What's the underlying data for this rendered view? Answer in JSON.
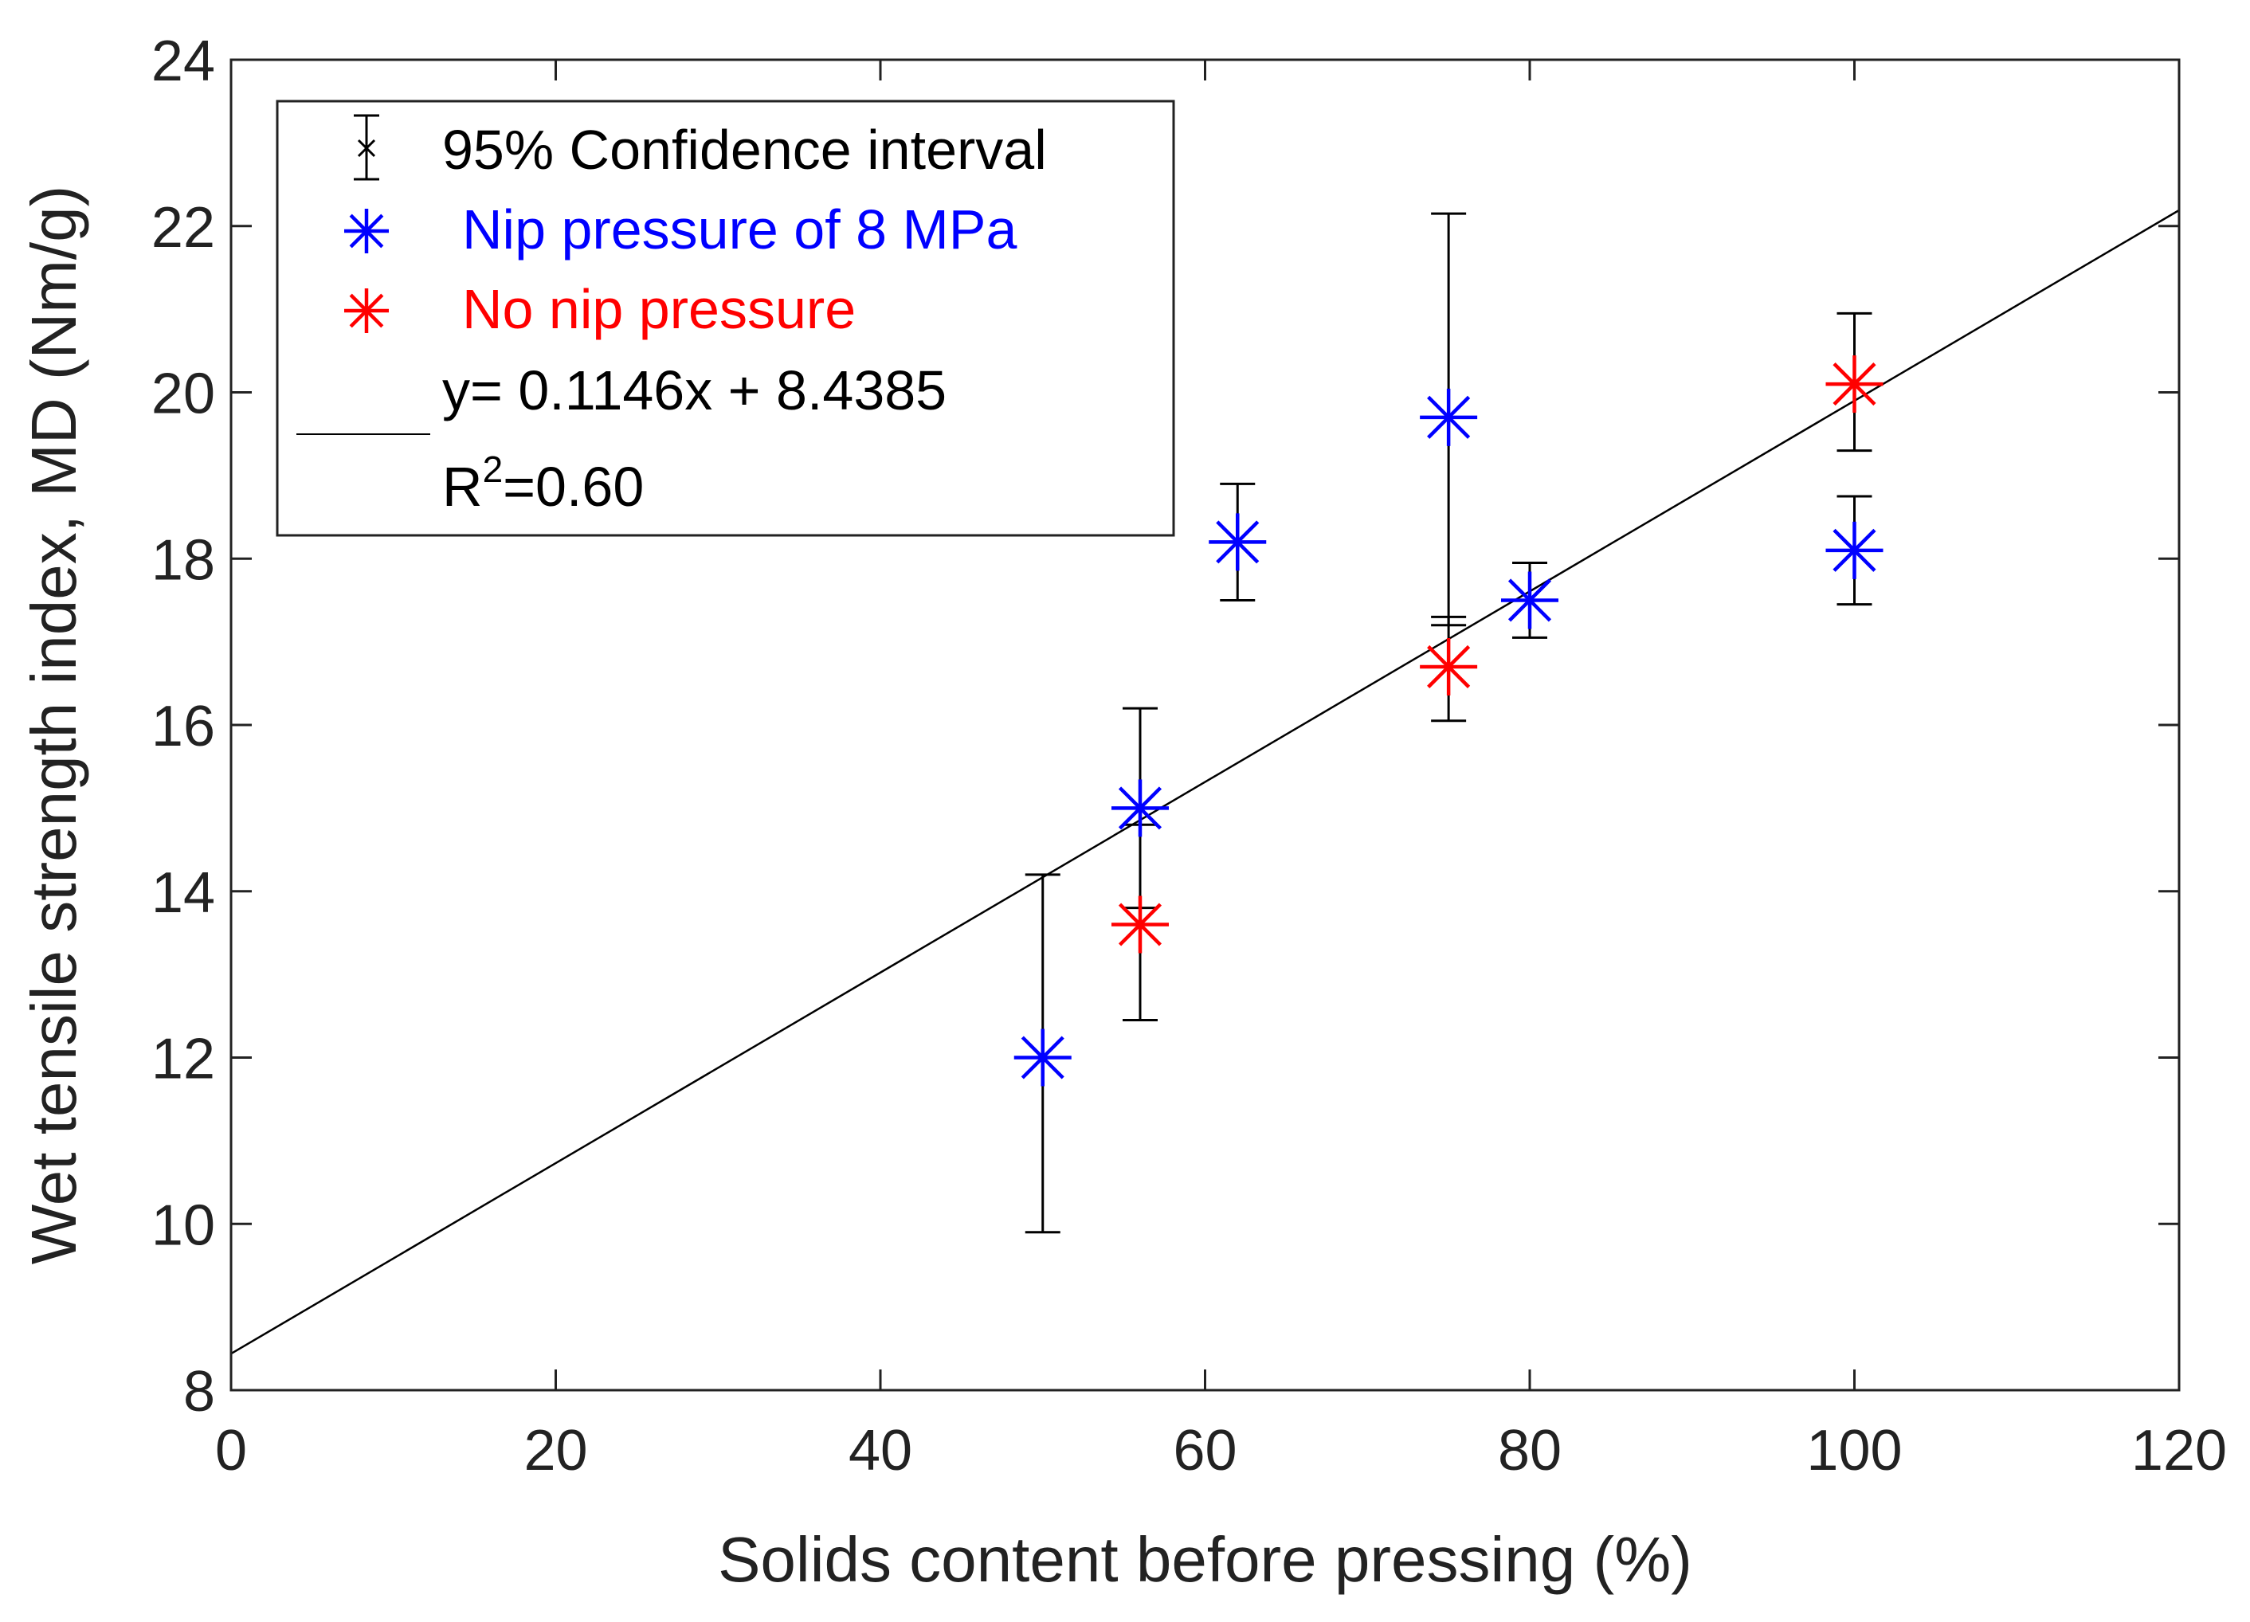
{
  "chart_data": {
    "type": "scatter",
    "xlabel": "Solids content before pressing (%)",
    "ylabel": "Wet tensile strength index, MD (Nm/g)",
    "xlim": [
      0,
      120
    ],
    "ylim": [
      8,
      24
    ],
    "x_ticks": [
      0,
      20,
      40,
      60,
      80,
      100,
      120
    ],
    "y_ticks": [
      8,
      10,
      12,
      14,
      16,
      18,
      20,
      22,
      24
    ],
    "grid": false,
    "legend_position": "top-left",
    "marker": "asterisk",
    "series": [
      {
        "name": "Nip pressure of 8 MPa",
        "color": "#0000ff",
        "points": [
          {
            "x": 50,
            "y": 12.0,
            "ci_low": 9.9,
            "ci_high": 14.2
          },
          {
            "x": 56,
            "y": 15.0,
            "ci_low": 13.8,
            "ci_high": 16.2
          },
          {
            "x": 62,
            "y": 18.2,
            "ci_low": 17.5,
            "ci_high": 18.9
          },
          {
            "x": 75,
            "y": 19.7,
            "ci_low": 17.2,
            "ci_high": 22.15
          },
          {
            "x": 80,
            "y": 17.5,
            "ci_low": 17.05,
            "ci_high": 17.95
          },
          {
            "x": 100,
            "y": 18.1,
            "ci_low": 17.45,
            "ci_high": 18.75
          }
        ]
      },
      {
        "name": "No nip pressure",
        "color": "#ff0000",
        "points": [
          {
            "x": 56,
            "y": 13.6,
            "ci_low": 12.45,
            "ci_high": 14.8
          },
          {
            "x": 75,
            "y": 16.7,
            "ci_low": 16.05,
            "ci_high": 17.3
          },
          {
            "x": 100,
            "y": 20.1,
            "ci_low": 19.3,
            "ci_high": 20.95
          }
        ]
      }
    ],
    "errorbar_color": "#000000",
    "fit": {
      "slope": 0.1146,
      "intercept": 8.4385,
      "color": "#000000"
    },
    "legend": {
      "ci_label": "95% Confidence interval",
      "nip_label": "Nip pressure of 8 MPa",
      "no_nip_label": "No nip pressure",
      "fit_equation": "y= 0.1146x + 8.4385",
      "r2_prefix": "R",
      "r2_superscript": "2",
      "r2_value": "=0.60"
    }
  }
}
